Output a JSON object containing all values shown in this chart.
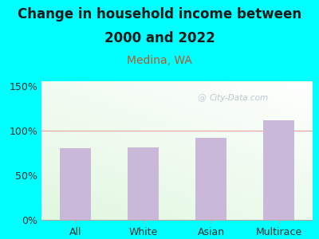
{
  "title_line1": "Change in household income between",
  "title_line2": "2000 and 2022",
  "subtitle": "Medina, WA",
  "categories": [
    "All",
    "White",
    "Asian",
    "Multirace"
  ],
  "values": [
    80,
    81,
    92,
    111
  ],
  "bar_color": "#c9b8d8",
  "title_fontsize": 12,
  "subtitle_fontsize": 10,
  "subtitle_color": "#b05a2f",
  "tick_label_fontsize": 9,
  "ytick_labels": [
    "0%",
    "50%",
    "100%",
    "150%"
  ],
  "ytick_values": [
    0,
    50,
    100,
    150
  ],
  "ylim": [
    0,
    155
  ],
  "background_outer": "#00ffff",
  "grid_color": "#e8a0a0",
  "watermark": "City-Data.com",
  "watermark_color": "#b0bcc8",
  "title_color": "#1a1a1a"
}
